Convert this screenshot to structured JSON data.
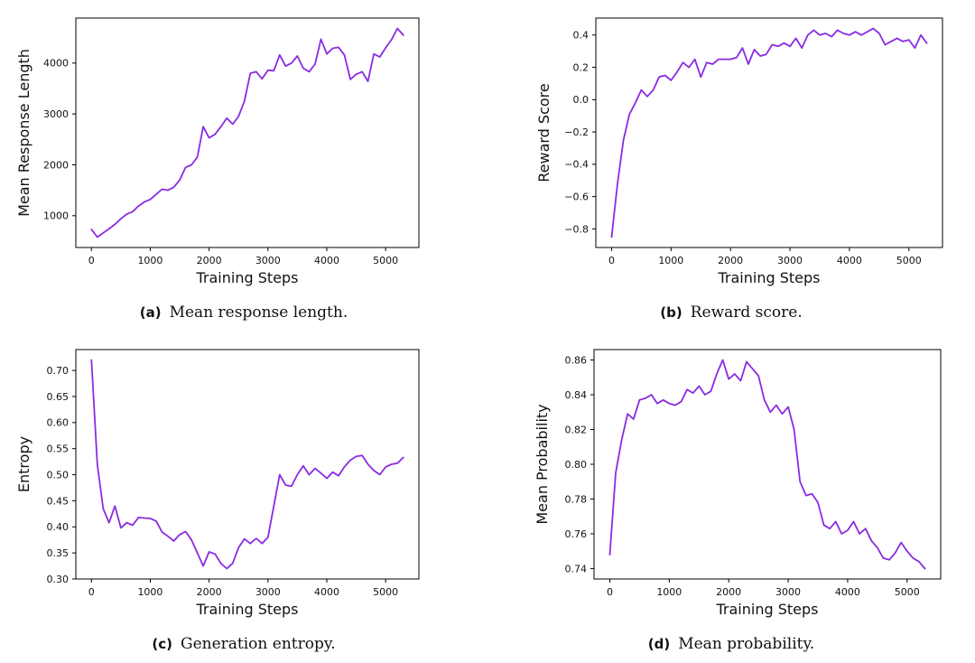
{
  "page": {
    "background": "#ffffff"
  },
  "figure": {
    "line_color": "#8a2be2",
    "axis_color": "#000000",
    "text_color": "#111111",
    "captions": [
      {
        "label": "(a)",
        "text": "Mean response length."
      },
      {
        "label": "(b)",
        "text": "Reward score."
      },
      {
        "label": "(c)",
        "text": "Generation entropy."
      },
      {
        "label": "(d)",
        "text": "Mean probability."
      }
    ]
  },
  "chart_data": [
    {
      "type": "line",
      "panel": "a",
      "xlabel": "Training Steps",
      "ylabel": "Mean Response Length",
      "grid": false,
      "legend": null,
      "xlim": [
        -265,
        5565
      ],
      "ylim": [
        375,
        4885
      ],
      "xtick_values": [
        0,
        1000,
        2000,
        3000,
        4000,
        5000
      ],
      "xtick_labels": [
        "0",
        "1000",
        "2000",
        "3000",
        "4000",
        "5000"
      ],
      "ytick_values": [
        1000,
        2000,
        3000,
        4000
      ],
      "ytick_labels": [
        "1000",
        "2000",
        "3000",
        "4000"
      ],
      "x": [
        0,
        100,
        200,
        300,
        400,
        500,
        600,
        700,
        800,
        900,
        1000,
        1100,
        1200,
        1300,
        1400,
        1500,
        1600,
        1700,
        1800,
        1900,
        2000,
        2100,
        2200,
        2300,
        2400,
        2500,
        2600,
        2700,
        2800,
        2900,
        3000,
        3100,
        3200,
        3300,
        3400,
        3500,
        3600,
        3700,
        3800,
        3900,
        4000,
        4100,
        4200,
        4300,
        4400,
        4500,
        4600,
        4700,
        4800,
        4900,
        5000,
        5100,
        5200,
        5300
      ],
      "y": [
        730,
        580,
        660,
        740,
        830,
        940,
        1030,
        1080,
        1190,
        1270,
        1320,
        1420,
        1520,
        1500,
        1560,
        1700,
        1950,
        2000,
        2150,
        2750,
        2530,
        2600,
        2750,
        2920,
        2800,
        2950,
        3250,
        3800,
        3830,
        3690,
        3860,
        3850,
        4160,
        3940,
        4000,
        4140,
        3900,
        3830,
        3980,
        4470,
        4180,
        4290,
        4310,
        4160,
        3680,
        3780,
        3830,
        3640,
        4180,
        4120,
        4300,
        4460,
        4680,
        4550
      ]
    },
    {
      "type": "line",
      "panel": "b",
      "xlabel": "Training Steps",
      "ylabel": "Reward Score",
      "grid": false,
      "legend": null,
      "xlim": [
        -265,
        5565
      ],
      "ylim": [
        -0.915,
        0.505
      ],
      "xtick_values": [
        0,
        1000,
        2000,
        3000,
        4000,
        5000
      ],
      "xtick_labels": [
        "0",
        "1000",
        "2000",
        "3000",
        "4000",
        "5000"
      ],
      "ytick_values": [
        0.4,
        0.2,
        0.0,
        -0.2,
        -0.4,
        -0.6,
        -0.8
      ],
      "ytick_labels": [
        "0.4",
        "0.2",
        "0.0",
        "−0.2",
        "−0.4",
        "−0.6",
        "−0.8"
      ],
      "x": [
        0,
        100,
        200,
        300,
        400,
        500,
        600,
        700,
        800,
        900,
        1000,
        1100,
        1200,
        1300,
        1400,
        1500,
        1600,
        1700,
        1800,
        1900,
        2000,
        2100,
        2200,
        2300,
        2400,
        2500,
        2600,
        2700,
        2800,
        2900,
        3000,
        3100,
        3200,
        3300,
        3400,
        3500,
        3600,
        3700,
        3800,
        3900,
        4000,
        4100,
        4200,
        4300,
        4400,
        4500,
        4600,
        4700,
        4800,
        4900,
        5000,
        5100,
        5200,
        5300
      ],
      "y": [
        -0.85,
        -0.52,
        -0.25,
        -0.09,
        -0.02,
        0.06,
        0.02,
        0.06,
        0.14,
        0.15,
        0.12,
        0.17,
        0.23,
        0.2,
        0.25,
        0.14,
        0.23,
        0.22,
        0.25,
        0.25,
        0.25,
        0.26,
        0.32,
        0.22,
        0.31,
        0.27,
        0.28,
        0.34,
        0.33,
        0.35,
        0.33,
        0.38,
        0.32,
        0.4,
        0.43,
        0.4,
        0.41,
        0.39,
        0.43,
        0.41,
        0.4,
        0.42,
        0.4,
        0.42,
        0.44,
        0.41,
        0.34,
        0.36,
        0.38,
        0.36,
        0.37,
        0.32,
        0.4,
        0.35
      ]
    },
    {
      "type": "line",
      "panel": "c",
      "xlabel": "Training Steps",
      "ylabel": "Entropy",
      "grid": false,
      "legend": null,
      "xlim": [
        -265,
        5565
      ],
      "ylim": [
        0.3,
        0.74
      ],
      "xtick_values": [
        0,
        1000,
        2000,
        3000,
        4000,
        5000
      ],
      "xtick_labels": [
        "0",
        "1000",
        "2000",
        "3000",
        "4000",
        "5000"
      ],
      "ytick_values": [
        0.7,
        0.65,
        0.6,
        0.55,
        0.5,
        0.45,
        0.4,
        0.35,
        0.3
      ],
      "ytick_labels": [
        "0.70",
        "0.65",
        "0.60",
        "0.55",
        "0.50",
        "0.45",
        "0.40",
        "0.35",
        "0.30"
      ],
      "x": [
        0,
        100,
        200,
        300,
        400,
        500,
        600,
        700,
        800,
        900,
        1000,
        1100,
        1200,
        1300,
        1400,
        1500,
        1600,
        1700,
        1800,
        1900,
        2000,
        2100,
        2200,
        2300,
        2400,
        2500,
        2600,
        2700,
        2800,
        2900,
        3000,
        3100,
        3200,
        3300,
        3400,
        3500,
        3600,
        3700,
        3800,
        3900,
        4000,
        4100,
        4200,
        4300,
        4400,
        4500,
        4600,
        4700,
        4800,
        4900,
        5000,
        5100,
        5200,
        5300
      ],
      "y": [
        0.72,
        0.52,
        0.435,
        0.408,
        0.44,
        0.398,
        0.408,
        0.403,
        0.418,
        0.417,
        0.416,
        0.411,
        0.39,
        0.382,
        0.373,
        0.385,
        0.391,
        0.375,
        0.35,
        0.325,
        0.352,
        0.348,
        0.33,
        0.32,
        0.33,
        0.36,
        0.377,
        0.368,
        0.378,
        0.368,
        0.38,
        0.44,
        0.5,
        0.48,
        0.478,
        0.5,
        0.517,
        0.5,
        0.512,
        0.503,
        0.493,
        0.505,
        0.498,
        0.515,
        0.528,
        0.535,
        0.537,
        0.52,
        0.508,
        0.5,
        0.515,
        0.52,
        0.522,
        0.533
      ]
    },
    {
      "type": "line",
      "panel": "d",
      "xlabel": "Training Steps",
      "ylabel": "Mean Probability",
      "grid": false,
      "legend": null,
      "xlim": [
        -265,
        5565
      ],
      "ylim": [
        0.734,
        0.866
      ],
      "xtick_values": [
        0,
        1000,
        2000,
        3000,
        4000,
        5000
      ],
      "xtick_labels": [
        "0",
        "1000",
        "2000",
        "3000",
        "4000",
        "5000"
      ],
      "ytick_values": [
        0.86,
        0.84,
        0.82,
        0.8,
        0.78,
        0.76,
        0.74
      ],
      "ytick_labels": [
        "0.86",
        "0.84",
        "0.82",
        "0.80",
        "0.78",
        "0.76",
        "0.74"
      ],
      "x": [
        0,
        100,
        200,
        300,
        400,
        500,
        600,
        700,
        800,
        900,
        1000,
        1100,
        1200,
        1300,
        1400,
        1500,
        1600,
        1700,
        1800,
        1900,
        2000,
        2100,
        2200,
        2300,
        2400,
        2500,
        2600,
        2700,
        2800,
        2900,
        3000,
        3100,
        3200,
        3300,
        3400,
        3500,
        3600,
        3700,
        3800,
        3900,
        4000,
        4100,
        4200,
        4300,
        4400,
        4500,
        4600,
        4700,
        4800,
        4900,
        5000,
        5100,
        5200,
        5300
      ],
      "y": [
        0.748,
        0.795,
        0.814,
        0.829,
        0.826,
        0.837,
        0.838,
        0.84,
        0.835,
        0.837,
        0.835,
        0.834,
        0.836,
        0.843,
        0.841,
        0.845,
        0.84,
        0.842,
        0.852,
        0.86,
        0.849,
        0.852,
        0.848,
        0.859,
        0.855,
        0.851,
        0.837,
        0.83,
        0.834,
        0.829,
        0.833,
        0.82,
        0.79,
        0.782,
        0.783,
        0.778,
        0.765,
        0.763,
        0.767,
        0.76,
        0.762,
        0.767,
        0.76,
        0.763,
        0.756,
        0.752,
        0.746,
        0.745,
        0.749,
        0.755,
        0.75,
        0.746,
        0.744,
        0.74
      ]
    }
  ]
}
